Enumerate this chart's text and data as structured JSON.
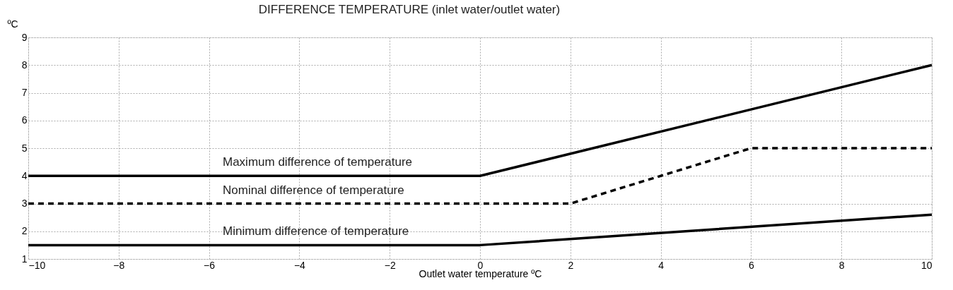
{
  "chart_data": {
    "type": "line",
    "title": "DIFFERENCE TEMPERATURE (inlet water/outlet water)",
    "xlabel": "Outlet water temperature ºC",
    "ylabel": "ºC",
    "series": [
      {
        "name": "Maximum difference of temperature",
        "color": "#000000",
        "line_style": "solid",
        "x": [
          -10,
          0,
          10
        ],
        "values": [
          4,
          4,
          8
        ]
      },
      {
        "name": "Nominal difference of temperature",
        "color": "#000000",
        "line_style": "dashed",
        "x": [
          -10,
          2,
          6,
          10
        ],
        "values": [
          3,
          3,
          5,
          5
        ]
      },
      {
        "name": "Minimum difference of temperature",
        "color": "#000000",
        "line_style": "solid",
        "x": [
          -10,
          0,
          10
        ],
        "values": [
          1.5,
          1.5,
          2.6
        ]
      }
    ],
    "xlim": [
      -10,
      10
    ],
    "xticks": [
      -10,
      -8,
      -6,
      -4,
      -2,
      0,
      2,
      4,
      6,
      8,
      10
    ],
    "ylim": [
      1,
      9
    ],
    "yticks": [
      1,
      2,
      3,
      4,
      5,
      6,
      7,
      8,
      9
    ],
    "grid": true,
    "legend": false,
    "marker": "none"
  }
}
